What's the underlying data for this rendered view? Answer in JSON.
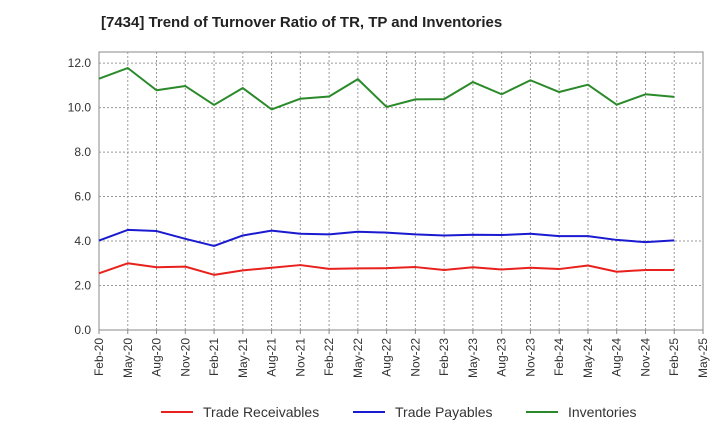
{
  "chart_data": {
    "type": "line",
    "title": "[7434]  Trend of Turnover Ratio of TR, TP and Inventories",
    "xlabel": "",
    "ylabel": "",
    "x_tick_labels": [
      "Feb-20",
      "May-20",
      "Aug-20",
      "Nov-20",
      "Feb-21",
      "May-21",
      "Aug-21",
      "Nov-21",
      "Feb-22",
      "May-22",
      "Aug-22",
      "Nov-22",
      "Feb-23",
      "May-23",
      "Aug-23",
      "Nov-23",
      "Feb-24",
      "May-24",
      "Aug-24",
      "Nov-24",
      "Feb-25",
      "May-25"
    ],
    "y_tick_labels": [
      "0.0",
      "2.0",
      "4.0",
      "6.0",
      "8.0",
      "10.0",
      "12.0"
    ],
    "ylim": [
      0,
      12.5
    ],
    "grid": true,
    "legend_position": "bottom",
    "categories": [
      "Feb-20",
      "May-20",
      "Aug-20",
      "Nov-20",
      "Feb-21",
      "May-21",
      "Aug-21",
      "Nov-21",
      "Feb-22",
      "May-22",
      "Aug-22",
      "Nov-22",
      "Feb-23",
      "May-23",
      "Aug-23",
      "Nov-23",
      "Feb-24",
      "May-24",
      "Aug-24",
      "Nov-24",
      "Feb-25"
    ],
    "series": [
      {
        "name": "Trade Receivables",
        "color": "#e8211d",
        "values": [
          2.55,
          3.0,
          2.82,
          2.85,
          2.48,
          2.68,
          2.8,
          2.92,
          2.75,
          2.77,
          2.78,
          2.83,
          2.7,
          2.82,
          2.72,
          2.8,
          2.74,
          2.9,
          2.62,
          2.7,
          2.7
        ]
      },
      {
        "name": "Trade Payables",
        "color": "#1a1ad0",
        "values": [
          4.02,
          4.5,
          4.45,
          4.1,
          3.78,
          4.25,
          4.47,
          4.33,
          4.3,
          4.42,
          4.38,
          4.3,
          4.25,
          4.28,
          4.27,
          4.33,
          4.22,
          4.22,
          4.05,
          3.95,
          4.03
        ]
      },
      {
        "name": "Inventories",
        "color": "#2a8a2a",
        "values": [
          11.3,
          11.78,
          10.78,
          10.97,
          10.12,
          10.88,
          9.92,
          10.4,
          10.5,
          11.28,
          10.03,
          10.37,
          10.38,
          11.15,
          10.6,
          11.23,
          10.7,
          11.03,
          10.13,
          10.6,
          10.48
        ]
      }
    ]
  }
}
